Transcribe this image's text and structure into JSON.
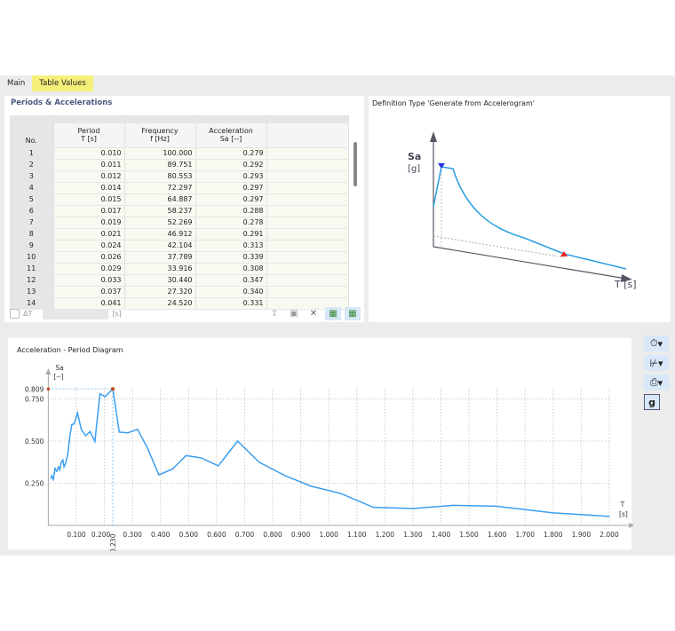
{
  "tabs": [
    {
      "label": "Main"
    },
    {
      "label": "Table Values"
    }
  ],
  "table": {
    "title": "Periods & Accelerations",
    "headers": {
      "no": "No.",
      "period": [
        "Period",
        "T [s]"
      ],
      "frequency": [
        "Frequency",
        "f [Hz]"
      ],
      "acceleration": [
        "Acceleration",
        "Sa [--]"
      ]
    },
    "rows": [
      [
        "1",
        "0.010",
        "100.000",
        "0.279"
      ],
      [
        "2",
        "0.011",
        "89.751",
        "0.292"
      ],
      [
        "3",
        "0.012",
        "80.553",
        "0.293"
      ],
      [
        "4",
        "0.014",
        "72.297",
        "0.297"
      ],
      [
        "5",
        "0.015",
        "64.887",
        "0.297"
      ],
      [
        "6",
        "0.017",
        "58.237",
        "0.288"
      ],
      [
        "7",
        "0.019",
        "52.269",
        "0.278"
      ],
      [
        "8",
        "0.021",
        "46.912",
        "0.291"
      ],
      [
        "9",
        "0.024",
        "42.104",
        "0.313"
      ],
      [
        "10",
        "0.026",
        "37.789",
        "0.339"
      ],
      [
        "11",
        "0.029",
        "33.916",
        "0.308"
      ],
      [
        "12",
        "0.033",
        "30.440",
        "0.347"
      ],
      [
        "13",
        "0.037",
        "27.320",
        "0.340"
      ],
      [
        "14",
        "0.041",
        "24.520",
        "0.331"
      ]
    ],
    "delta_label": "ΔT",
    "delta_unit": "[s]",
    "delta_value": ""
  },
  "definition": {
    "title": "Definition Type 'Generate from Accelerogram'",
    "ylabel": "Sa",
    "yunit": "[g]",
    "xlabel": "T [s]"
  },
  "chart_data": {
    "type": "line",
    "title": "Acceleration - Period Diagram",
    "ylabel": "Sa",
    "yunit": "[--]",
    "xlabel": "T",
    "xunit": "[s]",
    "xlim": [
      0,
      2.0
    ],
    "ylim": [
      0,
      0.85
    ],
    "grid": true,
    "xticks": [
      "0.100",
      "0.200",
      "0.300",
      "0.400",
      "0.500",
      "0.600",
      "0.700",
      "0.800",
      "0.900",
      "1.000",
      "1.100",
      "1.200",
      "1.300",
      "1.400",
      "1.500",
      "1.600",
      "1.700",
      "1.800",
      "1.900",
      "2.000"
    ],
    "yticks": [
      "0.250",
      "0.500",
      "0.750"
    ],
    "max_point": {
      "T": 0.23,
      "Sa": 0.809,
      "T_label": "0.230",
      "Sa_label": "0.809"
    },
    "line_color": "#3b9ef0",
    "x": [
      0.01,
      0.012,
      0.018,
      0.024,
      0.03,
      0.037,
      0.041,
      0.046,
      0.052,
      0.056,
      0.061,
      0.069,
      0.077,
      0.084,
      0.092,
      0.104,
      0.118,
      0.133,
      0.149,
      0.166,
      0.184,
      0.202,
      0.23,
      0.253,
      0.284,
      0.318,
      0.353,
      0.394,
      0.442,
      0.491,
      0.545,
      0.606,
      0.675,
      0.752,
      0.844,
      0.936,
      1.043,
      1.159,
      1.3,
      1.443,
      1.596,
      1.688,
      1.796,
      1.888,
      2.0
    ],
    "y": [
      0.279,
      0.295,
      0.272,
      0.338,
      0.321,
      0.346,
      0.33,
      0.374,
      0.388,
      0.347,
      0.365,
      0.418,
      0.532,
      0.598,
      0.602,
      0.667,
      0.567,
      0.532,
      0.556,
      0.497,
      0.781,
      0.763,
      0.809,
      0.553,
      0.549,
      0.57,
      0.461,
      0.3,
      0.333,
      0.414,
      0.4,
      0.353,
      0.5,
      0.374,
      0.295,
      0.233,
      0.189,
      0.107,
      0.1,
      0.119,
      0.114,
      0.096,
      0.075,
      0.065,
      0.053
    ]
  },
  "toolbar": {
    "g_label": "g"
  }
}
